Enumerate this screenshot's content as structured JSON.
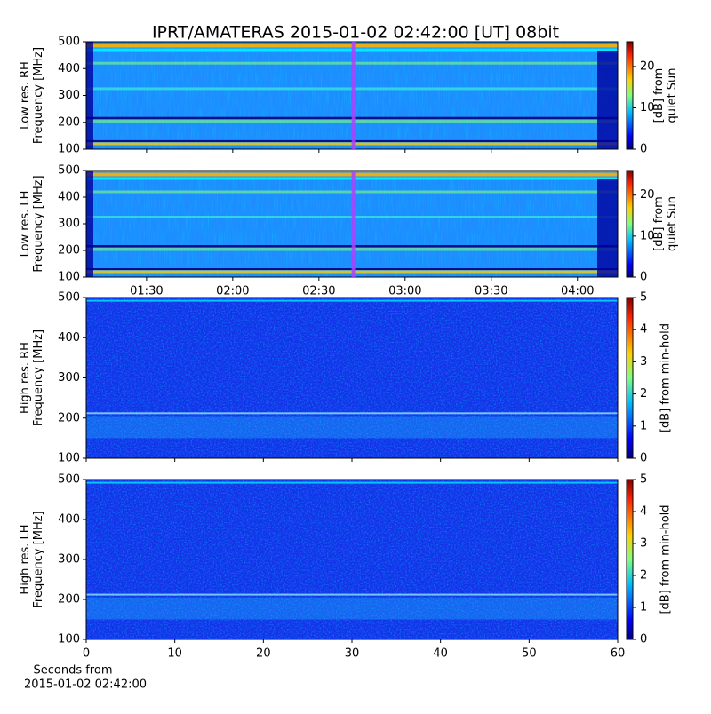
{
  "title": "IPRT/AMATERAS 2015-01-02 02:42:00 [UT]   08bit",
  "chart_data": [
    {
      "type": "heatmap",
      "ylabel": [
        "Low res. RH",
        "Frequency [MHz]"
      ],
      "ylim": [
        100,
        500
      ],
      "yticks": [
        100,
        200,
        300,
        400,
        500
      ],
      "xlim": [
        69,
        254
      ],
      "marker_x": 162,
      "colorbar": {
        "label": [
          "[dB] from",
          "quiet Sun"
        ],
        "lim": [
          0,
          26
        ],
        "ticks": [
          0,
          10,
          20
        ]
      }
    },
    {
      "type": "heatmap",
      "ylabel": [
        "Low res. LH",
        "Frequency [MHz]"
      ],
      "ylim": [
        100,
        500
      ],
      "yticks": [
        100,
        200,
        300,
        400,
        500
      ],
      "xlim": [
        69,
        254
      ],
      "marker_x": 162,
      "xticks": [
        {
          "value": 90,
          "label": "01:30"
        },
        {
          "value": 120,
          "label": "02:00"
        },
        {
          "value": 150,
          "label": "02:30"
        },
        {
          "value": 180,
          "label": "03:00"
        },
        {
          "value": 210,
          "label": "03:30"
        },
        {
          "value": 240,
          "label": "04:00"
        }
      ],
      "colorbar": {
        "label": [
          "[dB] from",
          "quiet Sun"
        ],
        "lim": [
          0,
          26
        ],
        "ticks": [
          0,
          10,
          20
        ]
      }
    },
    {
      "type": "heatmap",
      "ylabel": [
        "High res. RH",
        "Frequency [MHz]"
      ],
      "ylim": [
        100,
        500
      ],
      "yticks": [
        100,
        200,
        300,
        400,
        500
      ],
      "xlim": [
        0,
        60
      ],
      "xticks": [
        0,
        10,
        20,
        30,
        40,
        50,
        60
      ],
      "colorbar": {
        "label": [
          "[dB] from min-hold"
        ],
        "lim": [
          0,
          5
        ],
        "ticks": [
          0,
          1,
          2,
          3,
          4,
          5
        ]
      }
    },
    {
      "type": "heatmap",
      "ylabel": [
        "High res. LH",
        "Frequency [MHz]"
      ],
      "ylim": [
        100,
        500
      ],
      "yticks": [
        100,
        200,
        300,
        400,
        500
      ],
      "xlim": [
        0,
        60
      ],
      "xticks": [
        0,
        10,
        20,
        30,
        40,
        50,
        60
      ],
      "xlabel": [
        "Seconds from",
        "2015-01-02 02:42:00"
      ],
      "colorbar": {
        "label": [
          "[dB] from min-hold"
        ],
        "lim": [
          0,
          5
        ],
        "ticks": [
          0,
          1,
          2,
          3,
          4,
          5
        ]
      }
    }
  ]
}
